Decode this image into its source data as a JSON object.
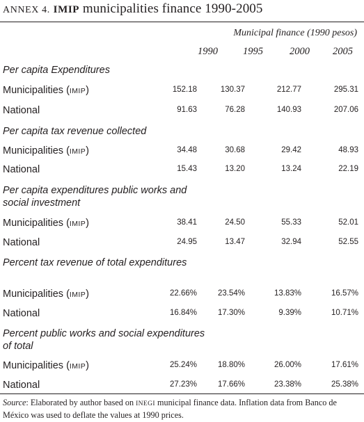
{
  "title": {
    "annex": "ANNEX 4.",
    "acronym": "IMIP",
    "rest": " municipalities finance 1990-2005"
  },
  "header": {
    "group": "Municipal finance (1990 pesos)",
    "years": [
      "1990",
      "1995",
      "2000",
      "2005"
    ]
  },
  "labels": {
    "municipalities": "Municipalities",
    "open_paren": "(",
    "imip": "IMIP",
    "close_paren": ")",
    "national": "National"
  },
  "sections": [
    {
      "title": "Per capita Expenditures",
      "municipalities": [
        "152.18",
        "130.37",
        "212.77",
        "295.31"
      ],
      "national": [
        "91.63",
        "76.28",
        "140.93",
        "207.06"
      ]
    },
    {
      "title": "Per capita tax revenue collected",
      "municipalities": [
        "34.48",
        "30.68",
        "29.42",
        "48.93"
      ],
      "national": [
        "15.43",
        "13.20",
        "13.24",
        "22.19"
      ]
    },
    {
      "title": "Per capita expenditures public works and social investment",
      "municipalities": [
        "38.41",
        "24.50",
        "55.33",
        "52.01"
      ],
      "national": [
        "24.95",
        "13.47",
        "32.94",
        "52.55"
      ]
    },
    {
      "title": "Percent tax revenue of total expenditures",
      "municipalities": [
        "22.66%",
        "23.54%",
        "13.83%",
        "16.57%"
      ],
      "national": [
        "16.84%",
        "17.30%",
        "9.39%",
        "10.71%"
      ]
    },
    {
      "title": "Percent public works and social expenditures of total",
      "municipalities": [
        "25.24%",
        "18.80%",
        "26.00%",
        "17.61%"
      ],
      "national": [
        "27.23%",
        "17.66%",
        "23.38%",
        "25.38%"
      ]
    }
  ],
  "source": {
    "label": "Source",
    "colon": ":",
    "text_a": " Elaborated by author based on ",
    "inegi": "INEGI",
    "text_b": " municipal finance data. Inflation data from Banco de México was used to deflate the values at 1990 prices."
  }
}
